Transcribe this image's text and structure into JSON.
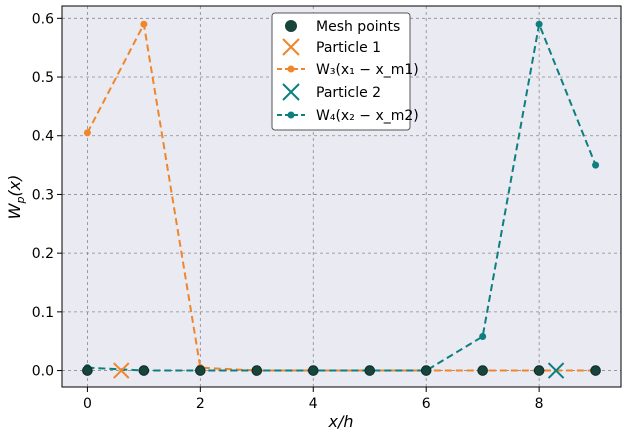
{
  "chart_data": {
    "type": "line",
    "xlabel": "x/h",
    "ylabel": "W_p(x)",
    "xlim": [
      -0.45,
      9.45
    ],
    "ylim": [
      -0.028,
      0.621
    ],
    "xticks": [
      0,
      2,
      4,
      6,
      8
    ],
    "xtick_labels": [
      "0",
      "2",
      "4",
      "6",
      "8"
    ],
    "yticks": [
      0.0,
      0.1,
      0.2,
      0.3,
      0.4,
      0.5,
      0.6
    ],
    "ytick_labels": [
      "0.0",
      "0.1",
      "0.2",
      "0.3",
      "0.4",
      "0.5",
      "0.6"
    ],
    "grid": true,
    "legend_position": "top-center",
    "background": "#eaeaf2",
    "colors": {
      "mesh": "#17453b",
      "p1": "#f0862a",
      "p2": "#0d7f7f"
    },
    "mesh_points": {
      "name": "Mesh points",
      "x": [
        0,
        1,
        2,
        3,
        4,
        5,
        6,
        7,
        8,
        9
      ],
      "y": [
        0,
        0,
        0,
        0,
        0,
        0,
        0,
        0,
        0,
        0
      ]
    },
    "particles": [
      {
        "name": "Particle 1",
        "x": 0.6,
        "y": 0
      },
      {
        "name": "Particle 2",
        "x": 8.3,
        "y": 0
      }
    ],
    "series": [
      {
        "name": "W_3(x_1 - x_m1)",
        "x": [
          0,
          1,
          2,
          3,
          4,
          5,
          6,
          7,
          8,
          9
        ],
        "y": [
          0.405,
          0.59,
          0.005,
          0,
          0,
          0,
          0,
          0,
          0,
          0
        ]
      },
      {
        "name": "W_4(x_2 - x_m2)",
        "x": [
          0,
          1,
          2,
          3,
          4,
          5,
          6,
          7,
          8,
          9
        ],
        "y": [
          0.005,
          0,
          0,
          0,
          0,
          0,
          0,
          0.058,
          0.59,
          0.35
        ]
      }
    ],
    "legend": [
      {
        "label": "Mesh points",
        "kind": "mesh"
      },
      {
        "label": "Particle 1",
        "kind": "p1-marker"
      },
      {
        "label": "W₃(x₁ − x_m1)",
        "kind": "p1-line"
      },
      {
        "label": "Particle 2",
        "kind": "p2-marker"
      },
      {
        "label": "W₄(x₂ − x_m2)",
        "kind": "p2-line"
      }
    ]
  }
}
